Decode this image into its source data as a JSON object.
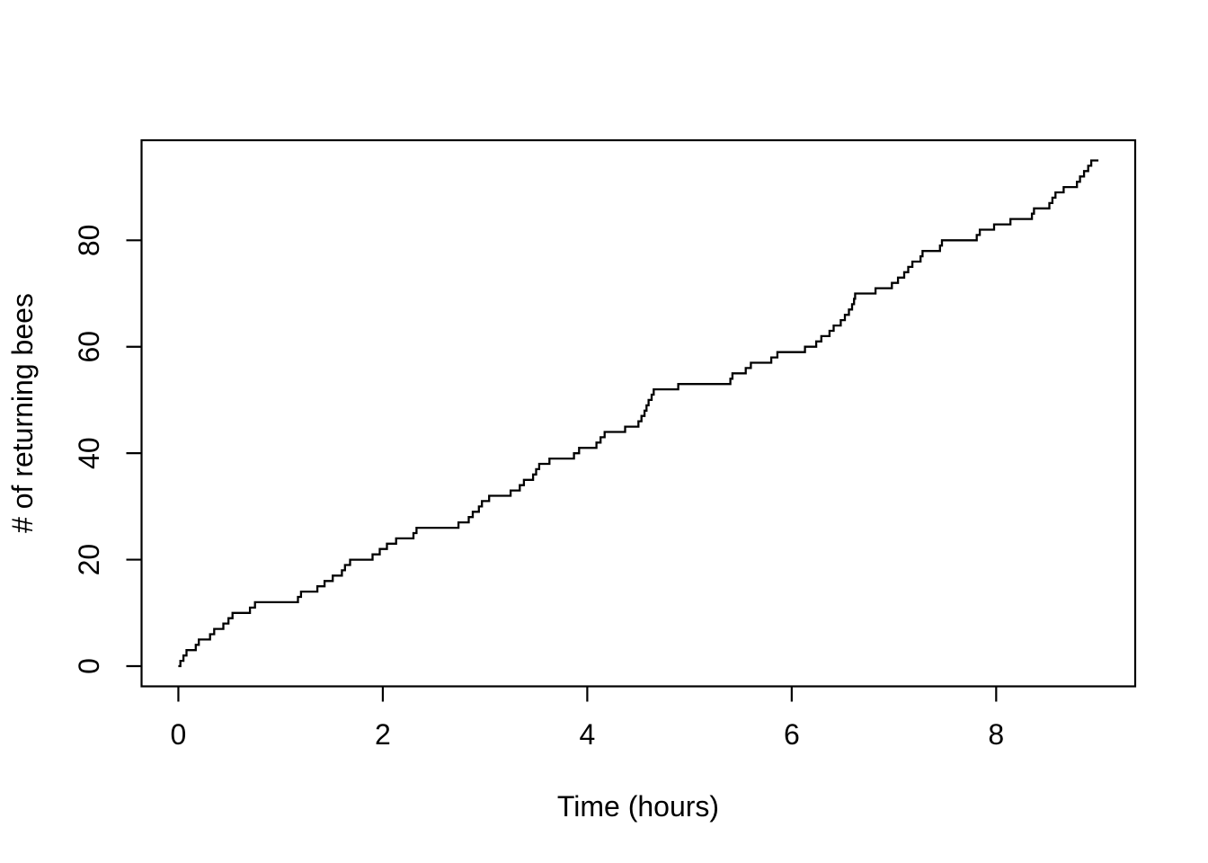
{
  "figure": {
    "background": "#ffffff",
    "foreground": "#000000"
  },
  "chart_data": {
    "type": "line",
    "subtype": "step-cumulative",
    "title": "",
    "xlabel": "Time (hours)",
    "ylabel": "# of returning bees",
    "xlim": [
      -0.36,
      9.36
    ],
    "ylim": [
      -3.8,
      98.8
    ],
    "xticks": [
      0,
      2,
      4,
      6,
      8
    ],
    "xtick_labels": [
      "0",
      "2",
      "4",
      "6",
      "8"
    ],
    "yticks": [
      0,
      20,
      40,
      60,
      80
    ],
    "ytick_labels": [
      "0",
      "20",
      "40",
      "60",
      "80"
    ],
    "grid": false,
    "legend": "none",
    "line_color": "#000000",
    "start_point": [
      0,
      0
    ],
    "end_time": 9.0,
    "final_count": 95,
    "event_times": [
      0.02,
      0.05,
      0.08,
      0.17,
      0.2,
      0.31,
      0.35,
      0.44,
      0.49,
      0.53,
      0.7,
      0.75,
      1.17,
      1.2,
      1.36,
      1.43,
      1.51,
      1.6,
      1.63,
      1.68,
      1.9,
      1.97,
      2.04,
      2.13,
      2.3,
      2.33,
      2.74,
      2.84,
      2.88,
      2.94,
      2.97,
      3.04,
      3.25,
      3.34,
      3.38,
      3.47,
      3.5,
      3.53,
      3.63,
      3.87,
      3.92,
      4.09,
      4.13,
      4.17,
      4.37,
      4.5,
      4.53,
      4.56,
      4.58,
      4.6,
      4.63,
      4.65,
      4.89,
      5.4,
      5.42,
      5.55,
      5.6,
      5.8,
      5.86,
      6.13,
      6.24,
      6.29,
      6.37,
      6.41,
      6.48,
      6.52,
      6.56,
      6.59,
      6.61,
      6.62,
      6.82,
      6.98,
      7.04,
      7.1,
      7.14,
      7.18,
      7.26,
      7.28,
      7.45,
      7.47,
      7.81,
      7.84,
      7.98,
      8.14,
      8.35,
      8.37,
      8.52,
      8.55,
      8.58,
      8.66,
      8.79,
      8.82,
      8.86,
      8.9,
      8.93
    ]
  }
}
